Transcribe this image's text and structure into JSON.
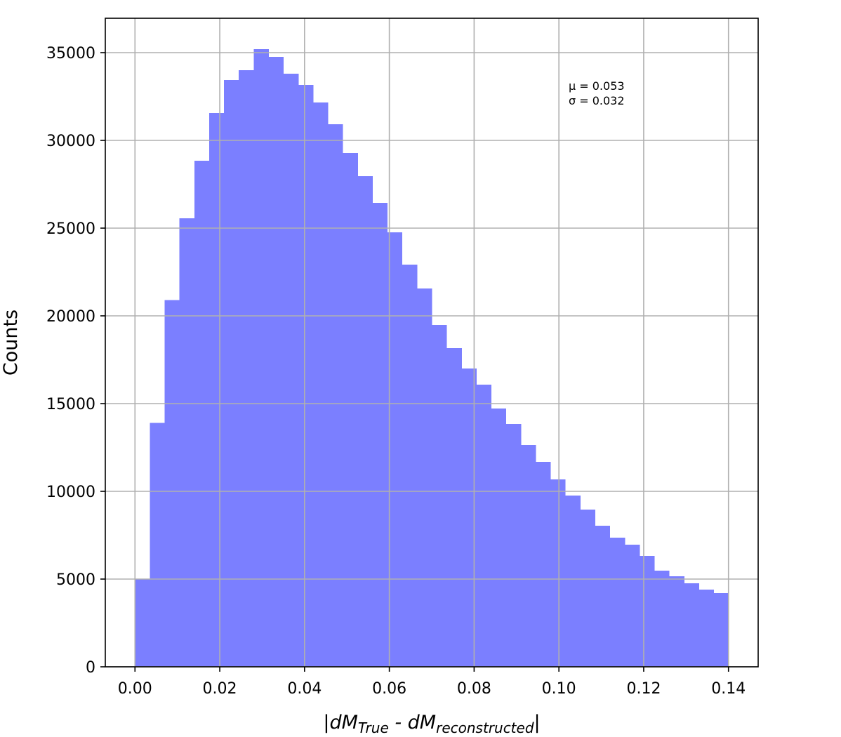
{
  "chart_data": {
    "type": "histogram",
    "xlabel": [
      "|dM",
      "True",
      " - dM",
      "reconstructed",
      "|"
    ],
    "ylabel": "Counts",
    "annotation": [
      "μ = 0.053",
      "σ = 0.032"
    ],
    "color": "#7b7fff",
    "grid": true,
    "bins": [
      0,
      0.0035,
      0.007,
      0.0105,
      0.014,
      0.0175,
      0.021,
      0.0245,
      0.028,
      0.0315,
      0.035,
      0.0385,
      0.042,
      0.0455,
      0.049,
      0.0525,
      0.056,
      0.0595,
      0.063,
      0.0665,
      0.07,
      0.0735,
      0.077,
      0.0805,
      0.084,
      0.0875,
      0.091,
      0.0945,
      0.098,
      0.1015,
      0.105,
      0.1085,
      0.112,
      0.1155,
      0.119,
      0.1225,
      0.126,
      0.1295,
      0.133,
      0.1365,
      0.14
    ],
    "values": [
      5000,
      13900,
      20900,
      25560,
      28840,
      31560,
      33440,
      34000,
      35200,
      34760,
      33800,
      33160,
      32160,
      30920,
      29280,
      27960,
      26440,
      24760,
      22920,
      21560,
      19480,
      18160,
      17000,
      16080,
      14720,
      13840,
      12640,
      11680,
      10680,
      9760,
      8960,
      8040,
      7360,
      6960,
      6320,
      5480,
      5160,
      4760,
      4400,
      4200
    ],
    "xlim": [
      -0.007,
      0.147
    ],
    "ylim": [
      0,
      36960
    ],
    "xticks": [
      {
        "value": 0,
        "label": "0.00"
      },
      {
        "value": 0.02,
        "label": "0.02"
      },
      {
        "value": 0.04,
        "label": "0.04"
      },
      {
        "value": 0.06,
        "label": "0.06"
      },
      {
        "value": 0.08,
        "label": "0.08"
      },
      {
        "value": 0.1,
        "label": "0.10"
      },
      {
        "value": 0.12,
        "label": "0.12"
      },
      {
        "value": 0.14,
        "label": "0.14"
      }
    ],
    "yticks": [
      0,
      5000,
      10000,
      15000,
      20000,
      25000,
      30000,
      35000
    ]
  }
}
